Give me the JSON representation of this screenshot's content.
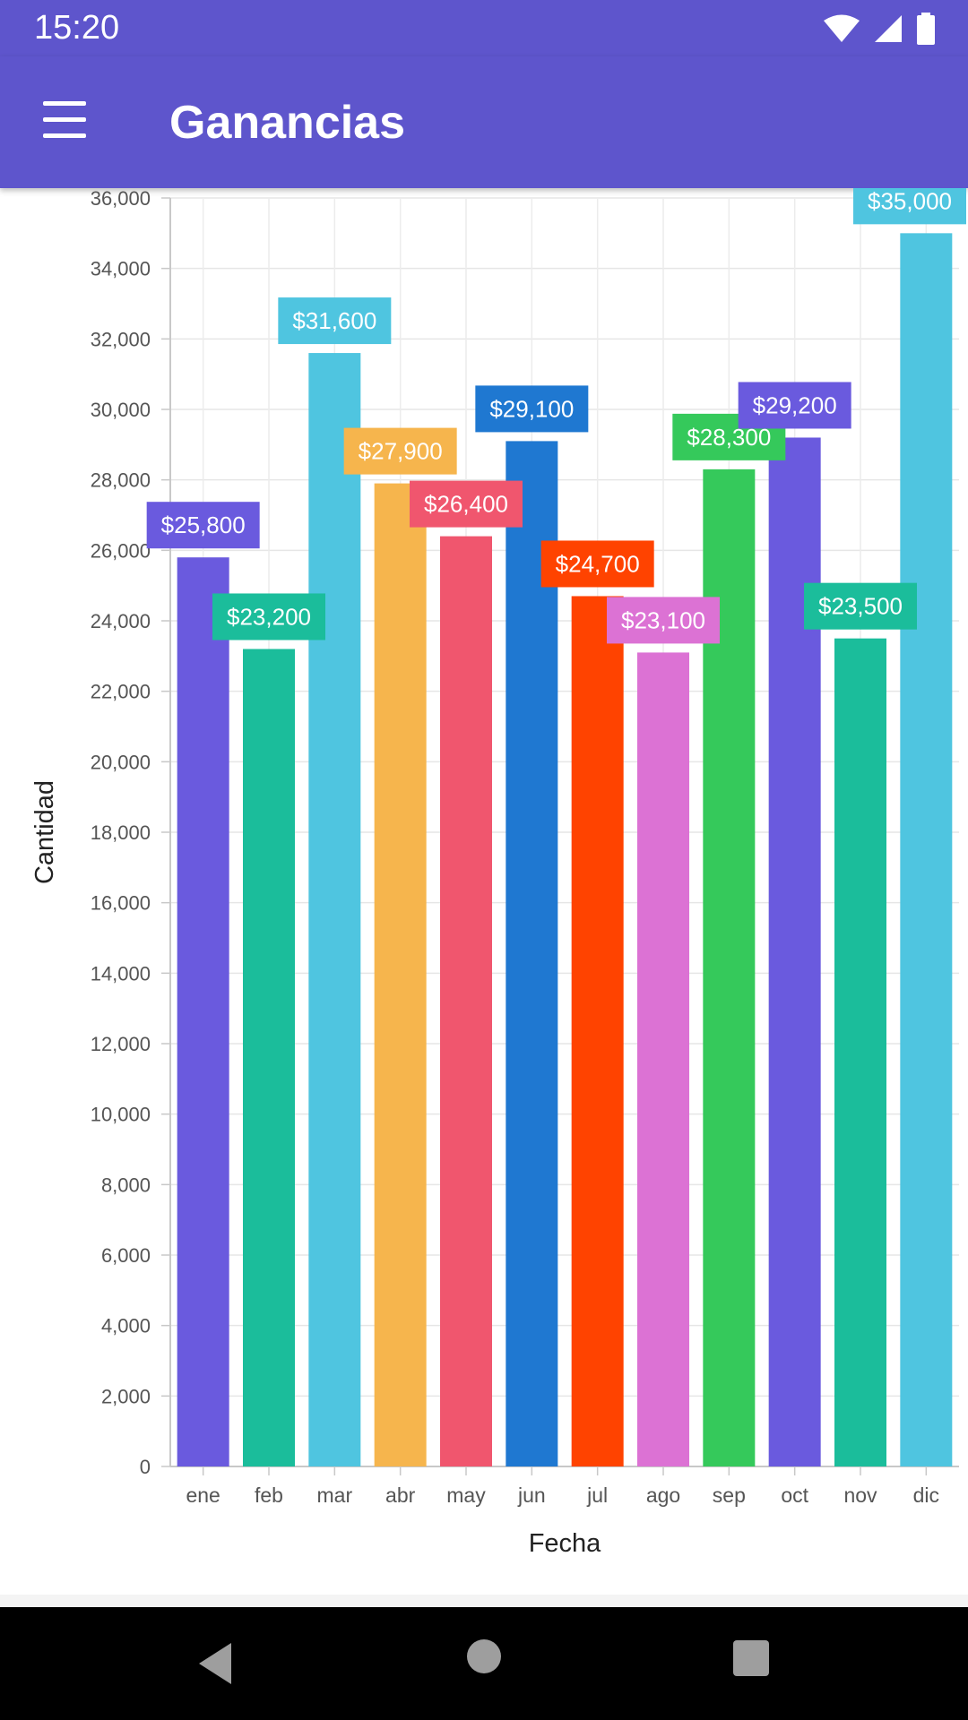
{
  "status_bar": {
    "time": "15:20",
    "icons": [
      "wifi-icon",
      "signal-icon",
      "battery-icon"
    ]
  },
  "app_bar": {
    "title": "Ganancias",
    "menu_icon": "hamburger-menu-icon"
  },
  "nav_bar": {
    "icons": [
      "back-triangle-icon",
      "home-circle-icon",
      "recents-square-icon"
    ]
  },
  "colors": {
    "primary": "#5e55cc"
  },
  "chart_data": {
    "type": "bar",
    "categories": [
      "ene",
      "feb",
      "mar",
      "abr",
      "may",
      "jun",
      "jul",
      "ago",
      "sep",
      "oct",
      "nov",
      "dic"
    ],
    "values": [
      25800,
      23200,
      31600,
      27900,
      26400,
      29100,
      24700,
      23100,
      28300,
      29200,
      23500,
      35000
    ],
    "data_labels": [
      "$25,800",
      "$23,200",
      "$31,600",
      "$27,900",
      "$26,400",
      "$29,100",
      "$24,700",
      "$23,100",
      "$28,300",
      "$29,200",
      "$23,500",
      "$35,000"
    ],
    "colors": [
      "#6a5ade",
      "#1bbd9b",
      "#4fc5e0",
      "#f6b54d",
      "#f0566e",
      "#1f78d1",
      "#ff4300",
      "#dc72d4",
      "#35c95b",
      "#6a5ade",
      "#1bbd9b",
      "#4fc5e0"
    ],
    "xlabel": "Fecha",
    "ylabel": "Cantidad",
    "ylim": [
      0,
      36000
    ],
    "yticks": [
      "0",
      "2,000",
      "4,000",
      "6,000",
      "8,000",
      "10,000",
      "12,000",
      "14,000",
      "16,000",
      "18,000",
      "20,000",
      "22,000",
      "24,000",
      "26,000",
      "28,000",
      "30,000",
      "32,000",
      "34,000",
      "36,000"
    ],
    "grid": true
  }
}
